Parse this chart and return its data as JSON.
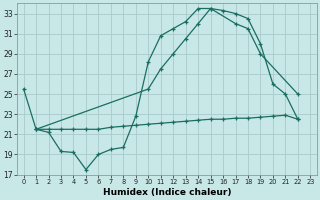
{
  "bg_color": "#c8e8e8",
  "grid_color": "#a8caca",
  "line_color": "#1a6e60",
  "xlabel": "Humidex (Indice chaleur)",
  "ylim": [
    17,
    34
  ],
  "xlim": [
    -0.5,
    23.5
  ],
  "yticks": [
    17,
    19,
    21,
    23,
    25,
    27,
    29,
    31,
    33
  ],
  "xticks": [
    0,
    1,
    2,
    3,
    4,
    5,
    6,
    7,
    8,
    9,
    10,
    11,
    12,
    13,
    14,
    15,
    16,
    17,
    18,
    19,
    20,
    21,
    22,
    23
  ],
  "line1_x": [
    0,
    1,
    2,
    3,
    4,
    5,
    6,
    7,
    8,
    9,
    10,
    11,
    12,
    13,
    14,
    15,
    16,
    17,
    18,
    19,
    20,
    21,
    22
  ],
  "line1_y": [
    25.5,
    21.5,
    21.2,
    19.3,
    19.2,
    17.5,
    19.0,
    19.5,
    19.7,
    22.8,
    28.2,
    30.8,
    31.5,
    32.2,
    33.5,
    33.5,
    33.3,
    33.0,
    32.5,
    30.0,
    26.0,
    25.0,
    22.5
  ],
  "line2_x": [
    1,
    10,
    11,
    12,
    13,
    14,
    15,
    17,
    18,
    19,
    22
  ],
  "line2_y": [
    21.5,
    25.5,
    27.5,
    29.0,
    30.5,
    32.0,
    33.5,
    32.0,
    31.5,
    29.0,
    25.0
  ],
  "line3_x": [
    1,
    2,
    3,
    4,
    5,
    6,
    7,
    8,
    9,
    10,
    11,
    12,
    13,
    14,
    15,
    16,
    17,
    18,
    19,
    20,
    21,
    22
  ],
  "line3_y": [
    21.5,
    21.5,
    21.5,
    21.5,
    21.5,
    21.5,
    21.7,
    21.8,
    21.9,
    22.0,
    22.1,
    22.2,
    22.3,
    22.4,
    22.5,
    22.5,
    22.6,
    22.6,
    22.7,
    22.8,
    22.9,
    22.5
  ]
}
